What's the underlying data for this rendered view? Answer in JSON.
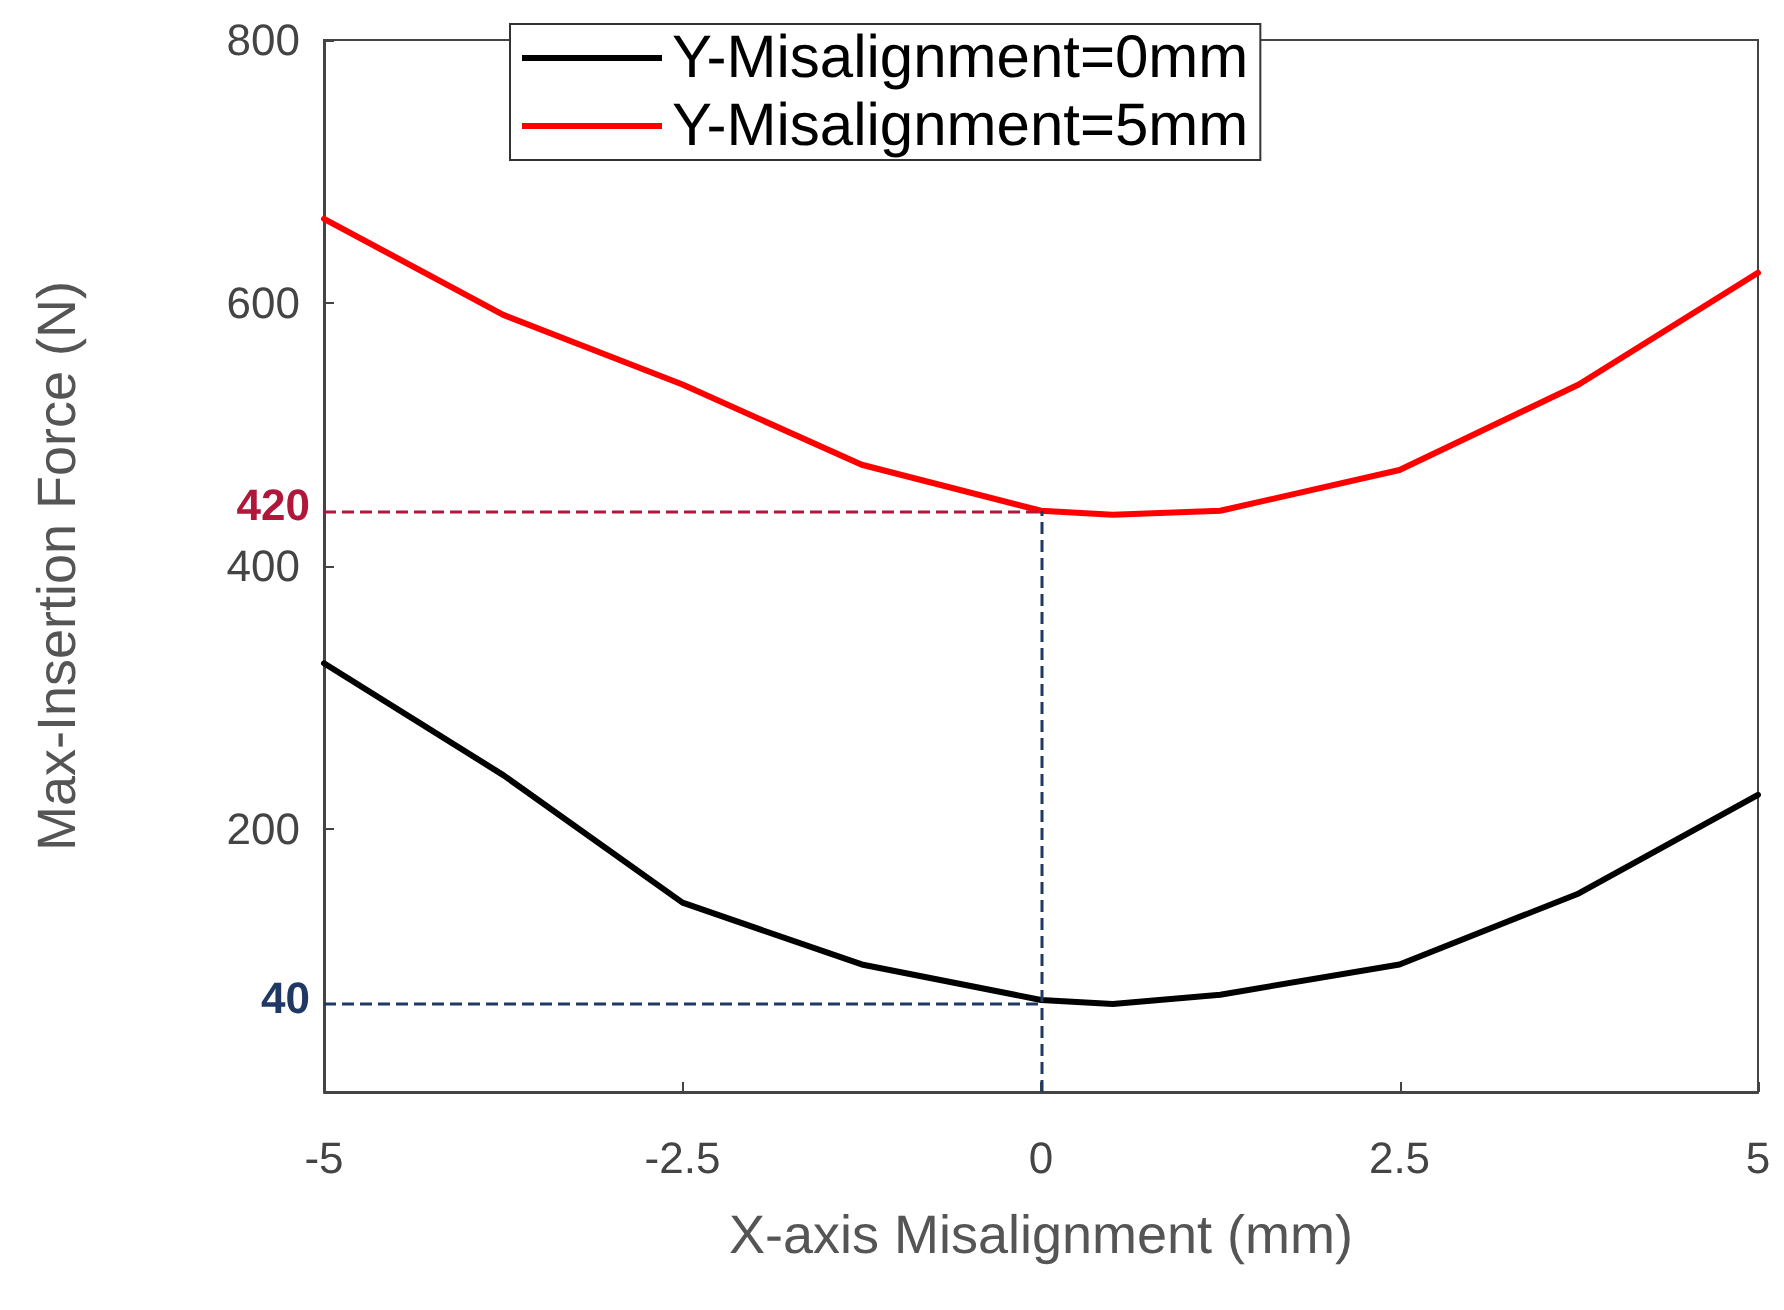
{
  "chart_data": {
    "type": "line",
    "xlabel": "X-axis Misalignment (mm)",
    "ylabel": "Max-Insertion Force (N)",
    "xlim": [
      -5,
      5
    ],
    "xticks": [
      -5,
      -2.5,
      0,
      2.5,
      5
    ],
    "ylim": [
      0,
      800
    ],
    "yticks": [
      200,
      400,
      600,
      800
    ],
    "annotations": [
      "420",
      "40"
    ],
    "grid": false,
    "legend": "top",
    "marker": "none",
    "line_style": "solid",
    "series": [
      {
        "name": "Y-Misalignment=0mm",
        "color": "#000000",
        "x": [
          -5,
          -3.75,
          -2.5,
          -1.25,
          0,
          0.5,
          1.25,
          2.5,
          3.75,
          5
        ],
        "values": [
          326,
          241,
          144,
          97,
          70,
          67,
          74,
          97,
          151,
          226
        ]
      },
      {
        "name": "Y-Misalignment=5mm",
        "color": "#ff0000",
        "x": [
          -5,
          -3.75,
          -2.5,
          -1.25,
          0,
          0.5,
          1.25,
          2.5,
          3.75,
          5
        ],
        "values": [
          664,
          591,
          538,
          477,
          442,
          439,
          442,
          473,
          538,
          623
        ]
      }
    ],
    "ref_lines": [
      {
        "axis": "y",
        "value": 442,
        "color": "#b0173a",
        "line_style": "dashed"
      },
      {
        "axis": "y",
        "value": 67,
        "color": "#1f3864",
        "line_style": "dashed"
      },
      {
        "axis": "x",
        "value": 0,
        "color": "#1f3864",
        "line_style": "dashed"
      }
    ]
  }
}
